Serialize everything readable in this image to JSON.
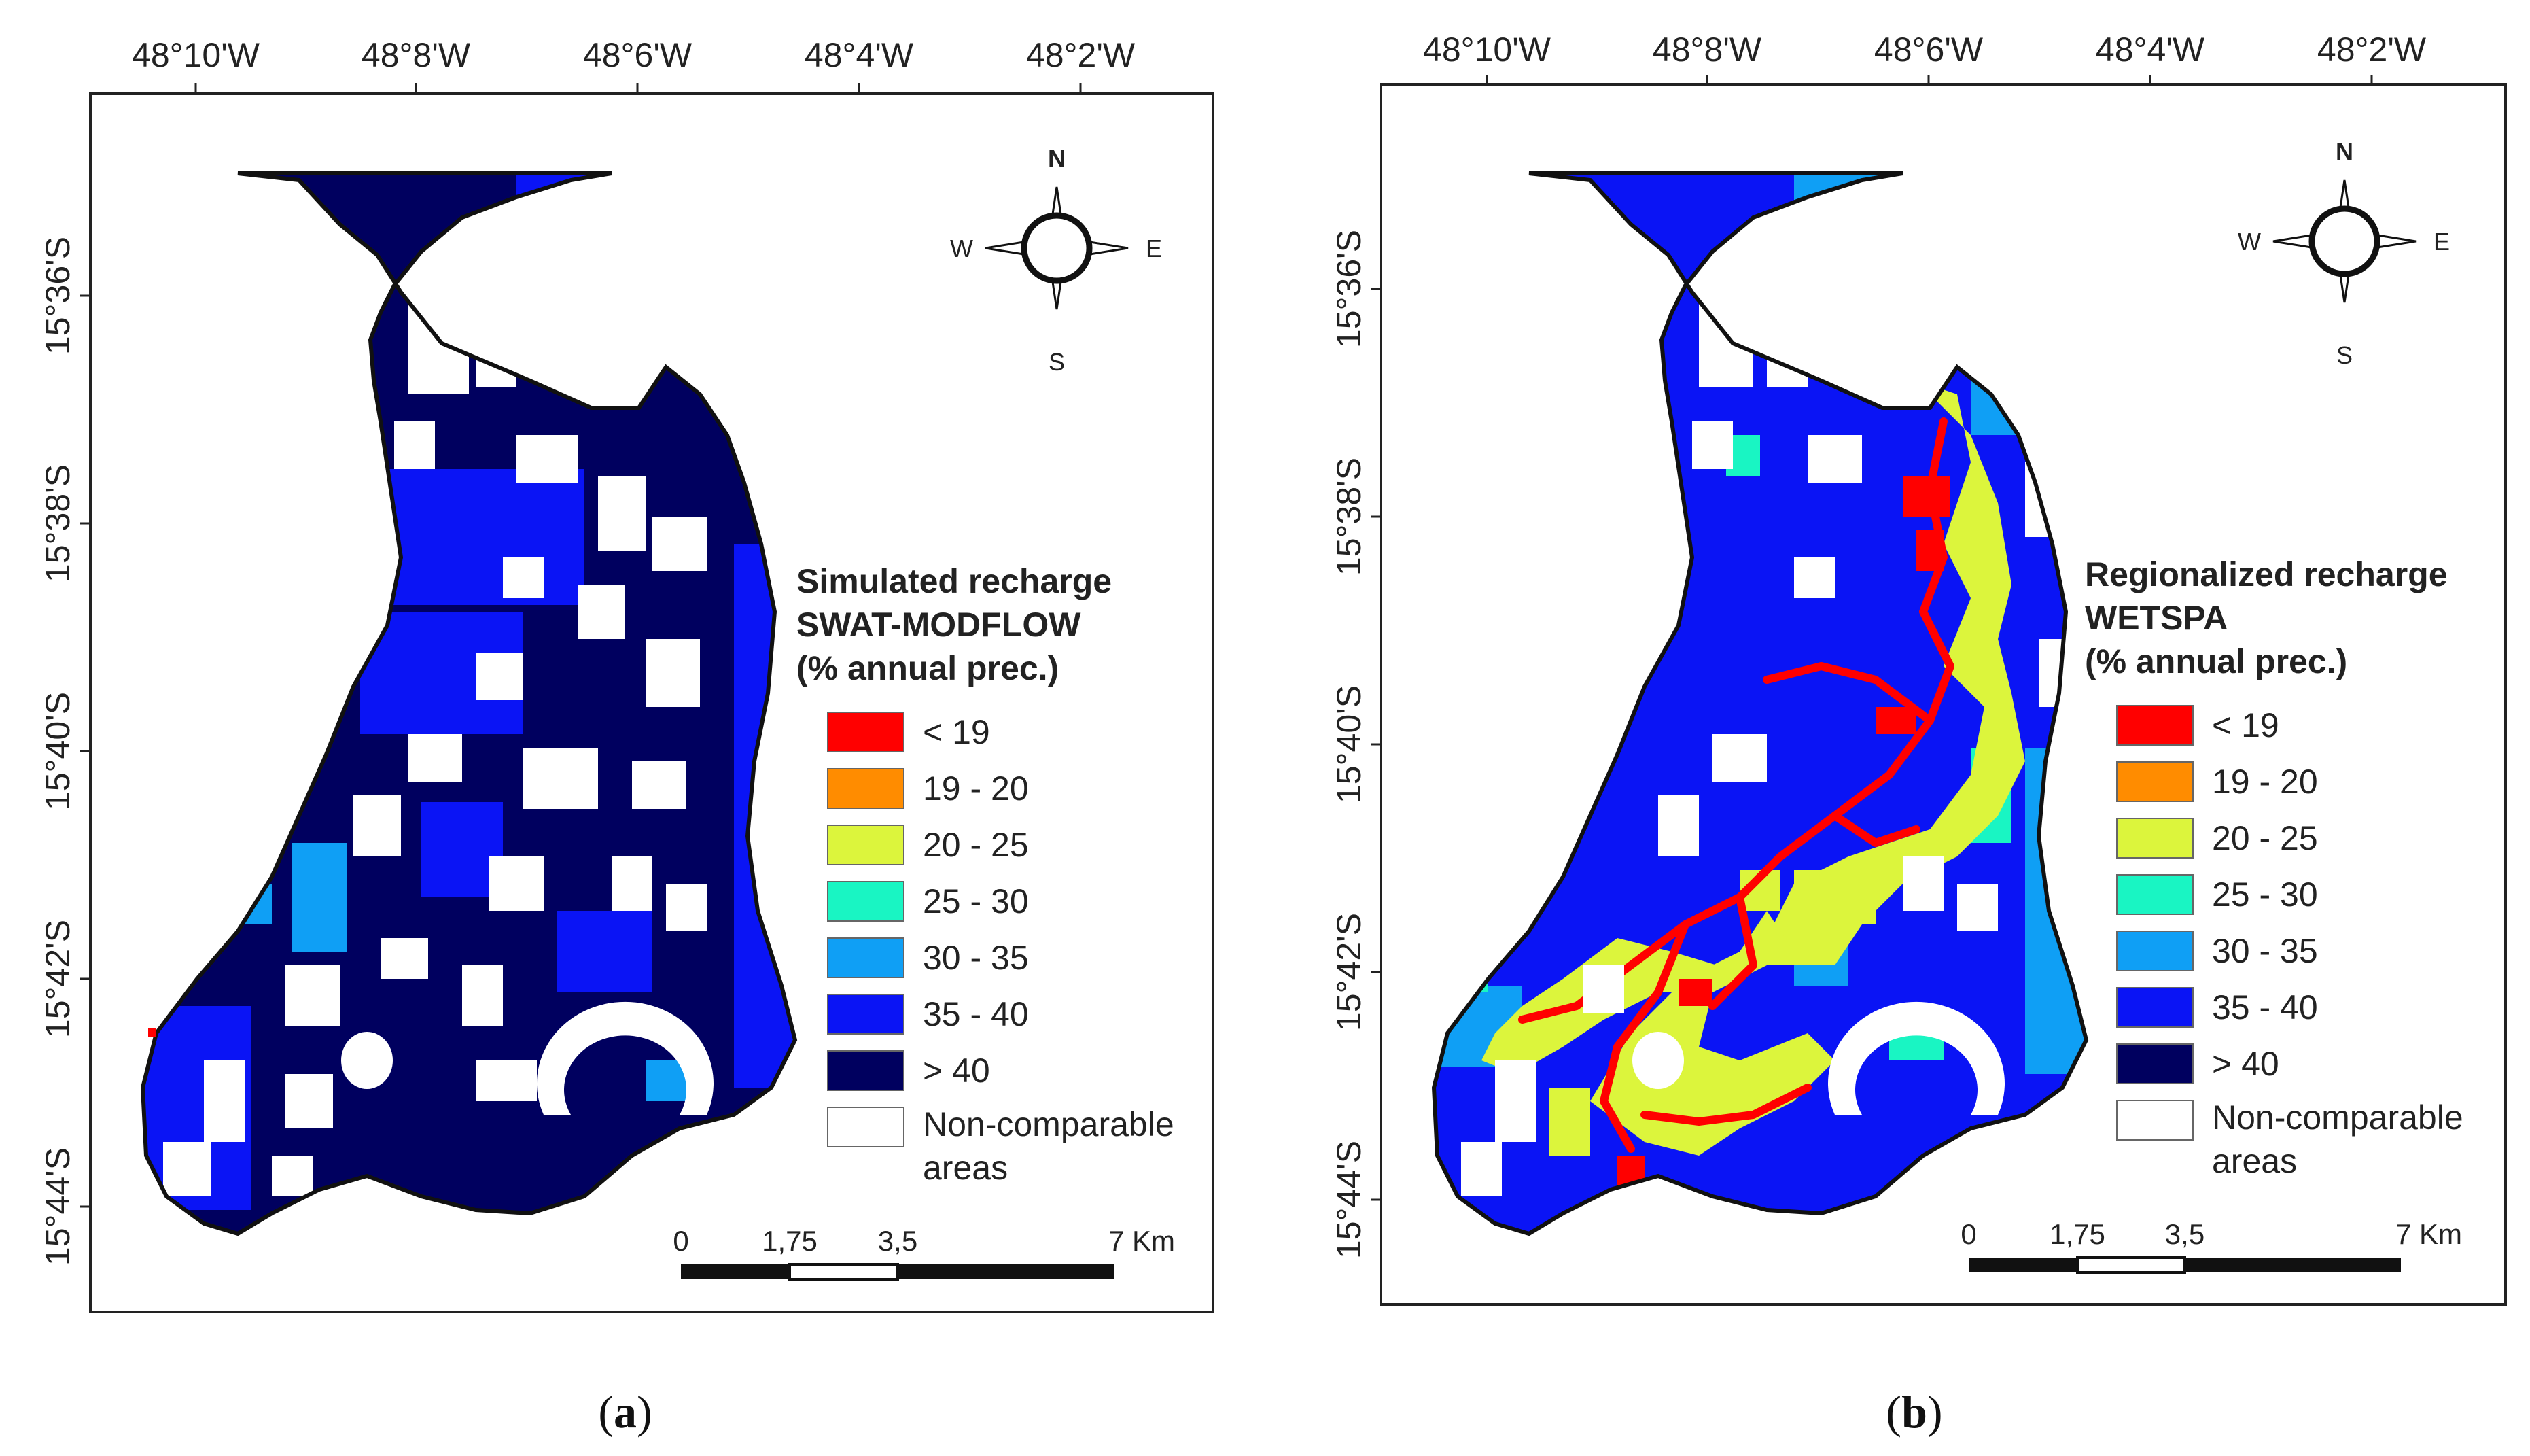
{
  "longitude_labels": [
    "48°10'W",
    "48°8'W",
    "48°6'W",
    "48°4'W",
    "48°2'W"
  ],
  "latitude_labels": [
    "15°36'S",
    "15°38'S",
    "15°40'S",
    "15°42'S",
    "15°44'S"
  ],
  "compass": {
    "n": "N",
    "s": "S",
    "e": "E",
    "w": "W"
  },
  "scale_bar": {
    "labels": [
      "0",
      "1,75",
      "3,5",
      "7 Km"
    ]
  },
  "legend": {
    "classes": [
      {
        "label": "< 19",
        "color": "#ff0000"
      },
      {
        "label": "19 - 20",
        "color": "#ff8c00"
      },
      {
        "label": "20 - 25",
        "color": "#dcf53c"
      },
      {
        "label": "25 - 30",
        "color": "#19f5c3"
      },
      {
        "label": "30 - 35",
        "color": "#0f9ff5"
      },
      {
        "label": "35 - 40",
        "color": "#0a14f5"
      },
      {
        "label": "> 40",
        "color": "#00005f"
      }
    ],
    "noncomparable": {
      "line1": "Non-comparable",
      "line2": "areas",
      "color": "#ffffff"
    }
  },
  "panels": [
    {
      "caption_letter": "a",
      "legend_title": [
        "Simulated recharge",
        "SWAT-MODFLOW",
        "(% annual prec.)"
      ]
    },
    {
      "caption_letter": "b",
      "legend_title": [
        "Regionalized recharge",
        "WETSPA",
        "(% annual prec.)"
      ]
    }
  ]
}
